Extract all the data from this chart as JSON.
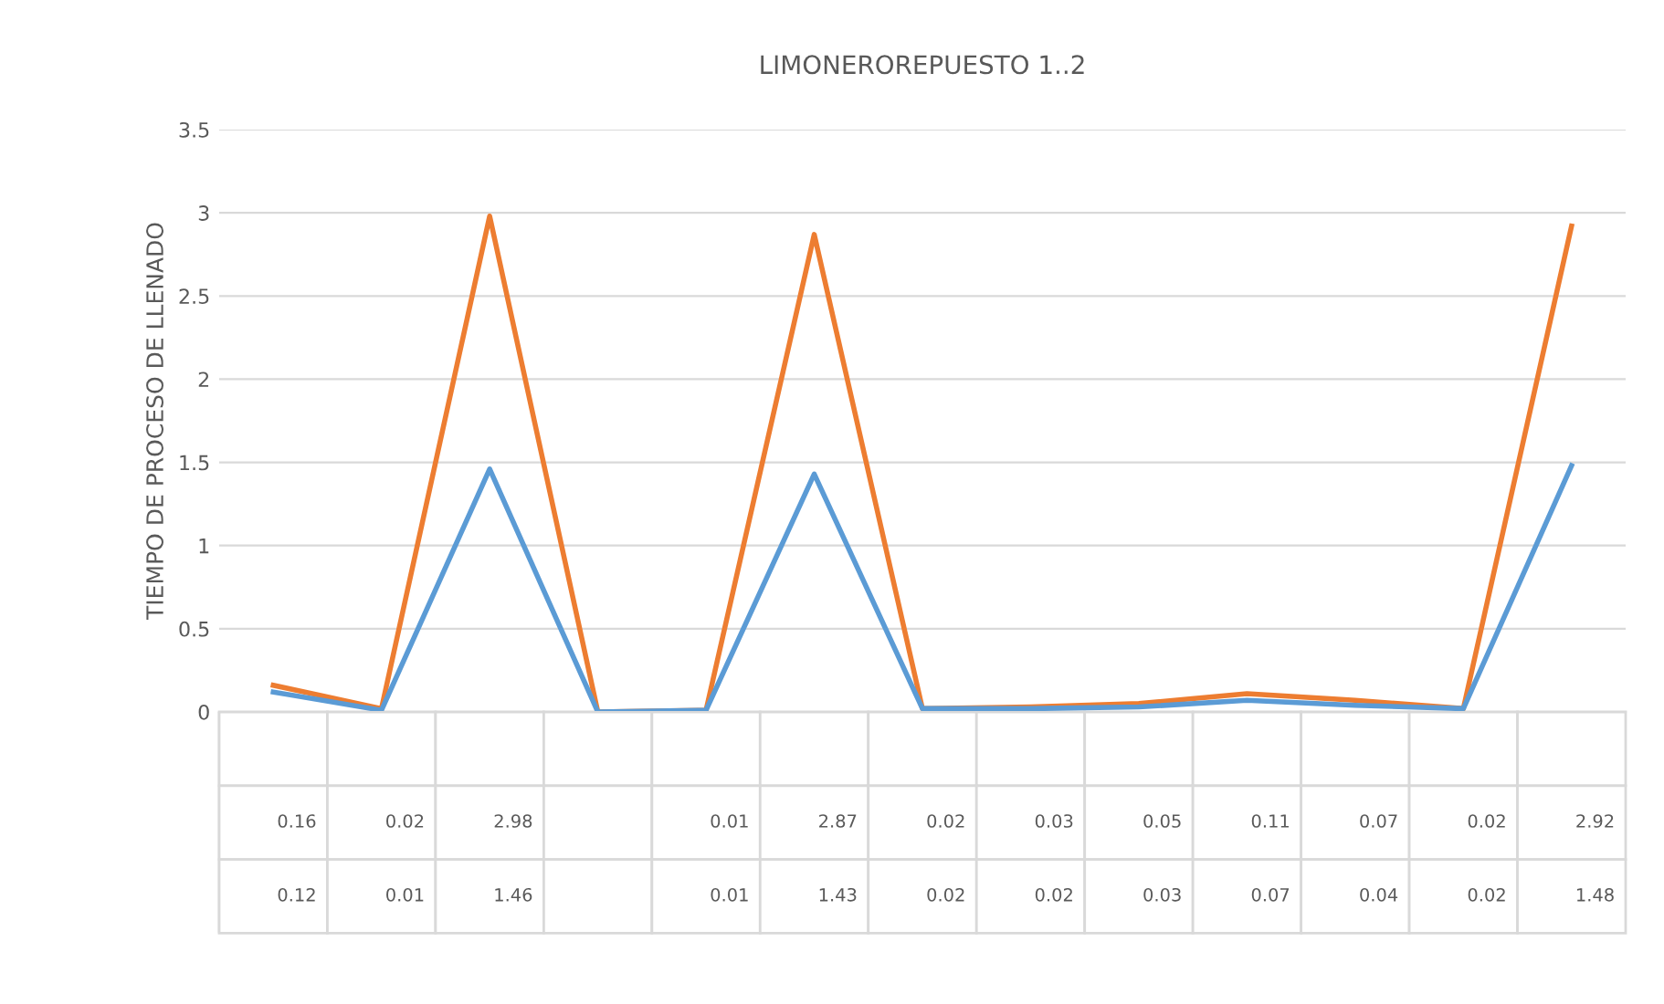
{
  "chart_data": {
    "type": "line",
    "title": "LIMONEROREPUESTO 1..2",
    "ylabel": "TIEMPO DE PROCESO DE LLENADO",
    "categories": [
      null,
      null,
      null,
      null,
      null,
      null,
      null,
      null,
      null,
      null,
      null,
      null,
      null
    ],
    "series": [
      {
        "color": "#ed7d31",
        "values": [
          0.16,
          0.02,
          2.98,
          0,
          0.01,
          2.87,
          0.02,
          0.03,
          0.05,
          0.11,
          0.07,
          0.02,
          2.92
        ],
        "value_labels": [
          "0.16",
          "0.02",
          "2.98",
          null,
          "0.01",
          "2.87",
          "0.02",
          "0.03",
          "0.05",
          "0.11",
          "0.07",
          "0.02",
          "2.92"
        ]
      },
      {
        "color": "#5b9bd5",
        "values": [
          0.12,
          0.01,
          1.46,
          0,
          0.01,
          1.43,
          0.02,
          0.02,
          0.03,
          0.07,
          0.04,
          0.02,
          1.48
        ],
        "value_labels": [
          "0.12",
          "0.01",
          "1.46",
          null,
          "0.01",
          "1.43",
          "0.02",
          "0.02",
          "0.03",
          "0.07",
          "0.04",
          "0.02",
          "1.48"
        ]
      }
    ],
    "ylim": [
      0,
      3.5
    ],
    "yticks": [
      0,
      0.5,
      1,
      1.5,
      2,
      2.5,
      3,
      3.5
    ],
    "grid": "y"
  }
}
